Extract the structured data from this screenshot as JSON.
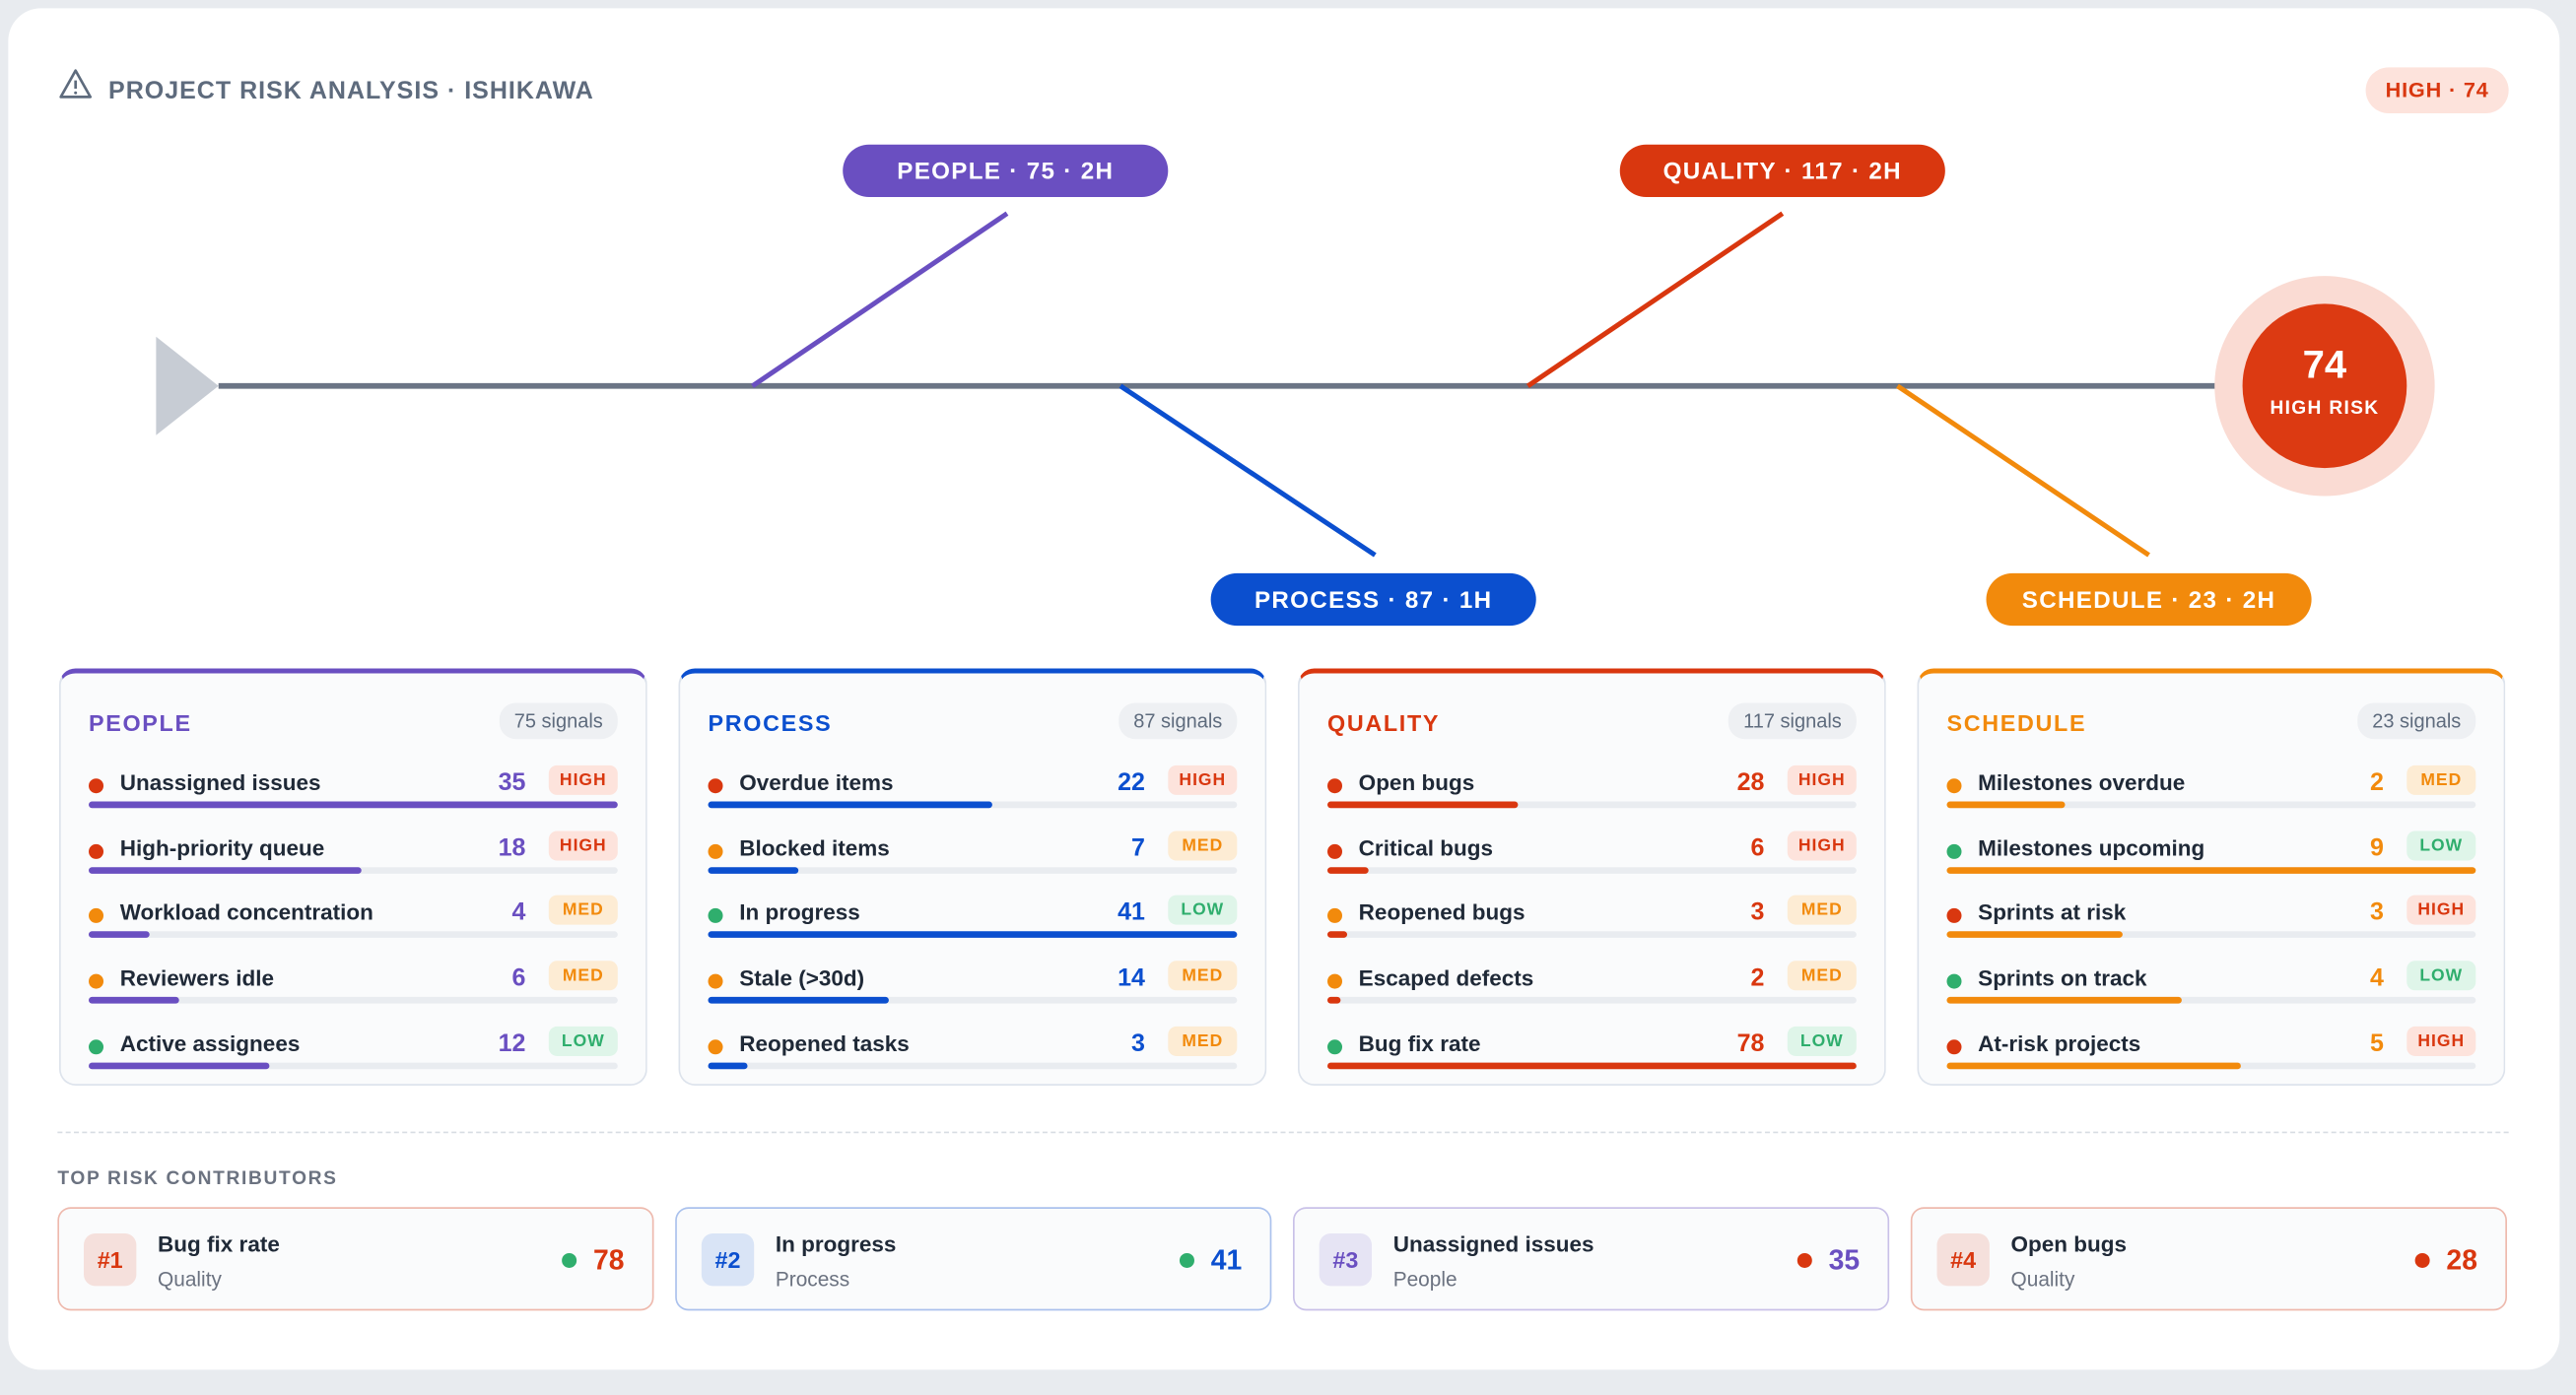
{
  "header": {
    "title": "PROJECT RISK ANALYSIS · ISHIKAWA",
    "badge": "HIGH · 74"
  },
  "diagram": {
    "score": 74,
    "score_label": "HIGH RISK",
    "bones": [
      {
        "label": "PEOPLE · 75 · 2H"
      },
      {
        "label": "PROCESS · 87 · 1H"
      },
      {
        "label": "QUALITY · 117 · 2H"
      },
      {
        "label": "SCHEDULE · 23 · 2H"
      }
    ]
  },
  "categories": [
    {
      "name": "PEOPLE",
      "signals": "75 signals",
      "color": "#6a4fc1",
      "items": [
        {
          "name": "Unassigned issues",
          "value": 35,
          "level": "HIGH"
        },
        {
          "name": "High-priority queue",
          "value": 18,
          "level": "HIGH"
        },
        {
          "name": "Workload concentration",
          "value": 4,
          "level": "MED"
        },
        {
          "name": "Reviewers idle",
          "value": 6,
          "level": "MED"
        },
        {
          "name": "Active assignees",
          "value": 12,
          "level": "LOW"
        }
      ]
    },
    {
      "name": "PROCESS",
      "signals": "87 signals",
      "color": "#0b4fcf",
      "items": [
        {
          "name": "Overdue items",
          "value": 22,
          "level": "HIGH"
        },
        {
          "name": "Blocked items",
          "value": 7,
          "level": "MED"
        },
        {
          "name": "In progress",
          "value": 41,
          "level": "LOW"
        },
        {
          "name": "Stale (>30d)",
          "value": 14,
          "level": "MED"
        },
        {
          "name": "Reopened tasks",
          "value": 3,
          "level": "MED"
        }
      ]
    },
    {
      "name": "QUALITY",
      "signals": "117 signals",
      "color": "#d9370f",
      "items": [
        {
          "name": "Open bugs",
          "value": 28,
          "level": "HIGH"
        },
        {
          "name": "Critical bugs",
          "value": 6,
          "level": "HIGH"
        },
        {
          "name": "Reopened bugs",
          "value": 3,
          "level": "MED"
        },
        {
          "name": "Escaped defects",
          "value": 2,
          "level": "MED"
        },
        {
          "name": "Bug fix rate",
          "value": 78,
          "level": "LOW"
        }
      ]
    },
    {
      "name": "SCHEDULE",
      "signals": "23 signals",
      "color": "#f28a0c",
      "items": [
        {
          "name": "Milestones overdue",
          "value": 2,
          "level": "MED"
        },
        {
          "name": "Milestones upcoming",
          "value": 9,
          "level": "LOW"
        },
        {
          "name": "Sprints at risk",
          "value": 3,
          "level": "HIGH"
        },
        {
          "name": "Sprints on track",
          "value": 4,
          "level": "LOW"
        },
        {
          "name": "At-risk projects",
          "value": 5,
          "level": "HIGH"
        }
      ]
    }
  ],
  "contributors": {
    "title": "TOP RISK CONTRIBUTORS",
    "items": [
      {
        "rank": "#1",
        "name": "Bug fix rate",
        "category": "Quality",
        "value": 78,
        "level": "LOW",
        "color": "#d9370f"
      },
      {
        "rank": "#2",
        "name": "In progress",
        "category": "Process",
        "value": 41,
        "level": "LOW",
        "color": "#0b4fcf"
      },
      {
        "rank": "#3",
        "name": "Unassigned issues",
        "category": "People",
        "value": 35,
        "level": "HIGH",
        "color": "#6a4fc1"
      },
      {
        "rank": "#4",
        "name": "Open bugs",
        "category": "Quality",
        "value": 28,
        "level": "HIGH",
        "color": "#d9370f"
      }
    ]
  }
}
